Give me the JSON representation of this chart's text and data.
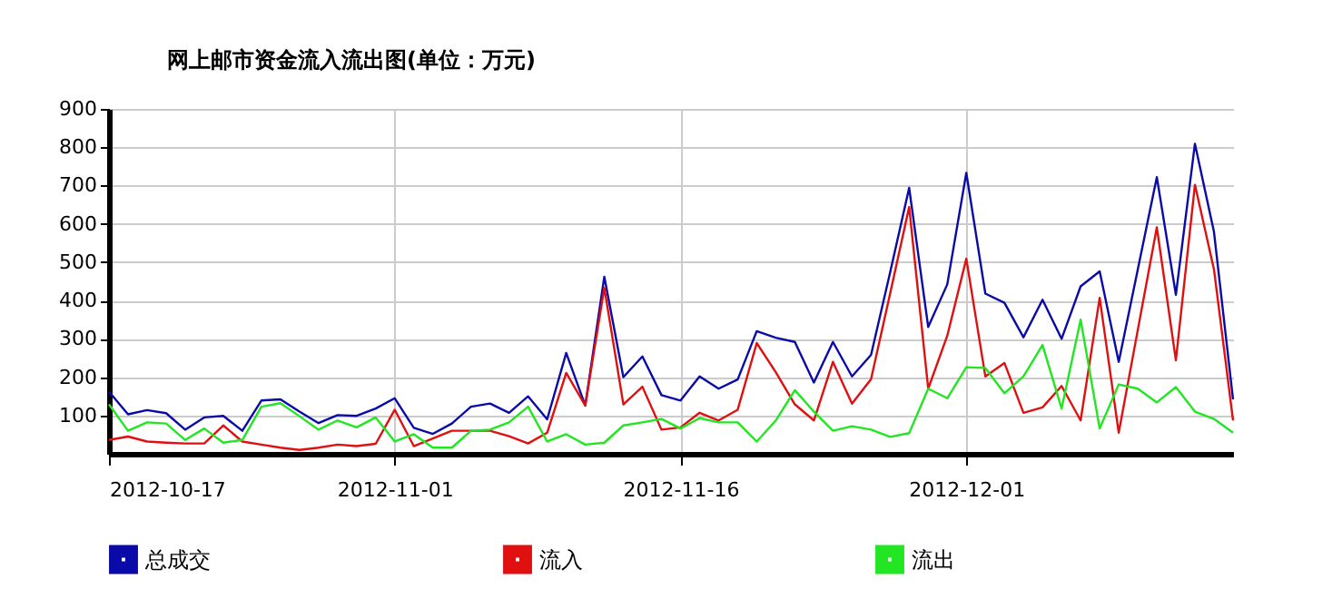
{
  "chart_data": {
    "type": "line",
    "title": "网上邮市资金流入流出图(单位：万元)",
    "x": [
      "2012-10-17",
      "2012-10-18",
      "2012-10-19",
      "2012-10-20",
      "2012-10-21",
      "2012-10-22",
      "2012-10-23",
      "2012-10-24",
      "2012-10-25",
      "2012-10-26",
      "2012-10-27",
      "2012-10-28",
      "2012-10-29",
      "2012-10-30",
      "2012-10-31",
      "2012-11-01",
      "2012-11-02",
      "2012-11-03",
      "2012-11-04",
      "2012-11-05",
      "2012-11-06",
      "2012-11-07",
      "2012-11-08",
      "2012-11-09",
      "2012-11-10",
      "2012-11-11",
      "2012-11-12",
      "2012-11-13",
      "2012-11-14",
      "2012-11-15",
      "2012-11-16",
      "2012-11-17",
      "2012-11-18",
      "2012-11-19",
      "2012-11-20",
      "2012-11-21",
      "2012-11-22",
      "2012-11-23",
      "2012-11-24",
      "2012-11-25",
      "2012-11-26",
      "2012-11-27",
      "2012-11-28",
      "2012-11-29",
      "2012-11-30",
      "2012-12-01",
      "2012-12-02",
      "2012-12-03",
      "2012-12-04",
      "2012-12-05",
      "2012-12-06",
      "2012-12-07",
      "2012-12-08",
      "2012-12-09",
      "2012-12-10",
      "2012-12-11",
      "2012-12-12",
      "2012-12-13",
      "2012-12-14",
      "2012-12-15"
    ],
    "series": [
      {
        "name": "总成交",
        "color": "#0a0aa8",
        "values": [
          162,
          103,
          114,
          106,
          63,
          95,
          99,
          60,
          139,
          142,
          110,
          80,
          101,
          99,
          118,
          145,
          68,
          52,
          79,
          123,
          131,
          107,
          150,
          90,
          263,
          126,
          462,
          200,
          254,
          153,
          139,
          202,
          170,
          194,
          320,
          303,
          292,
          186,
          292,
          202,
          258,
          473,
          694,
          331,
          442,
          733,
          418,
          394,
          304,
          402,
          300,
          437,
          476,
          240,
          481,
          722,
          415,
          809,
          579,
          142
        ]
      },
      {
        "name": "流入",
        "color": "#e01010",
        "values": [
          36,
          45,
          32,
          29,
          27,
          27,
          74,
          32,
          24,
          16,
          10,
          16,
          24,
          20,
          26,
          115,
          20,
          40,
          60,
          60,
          60,
          46,
          27,
          55,
          211,
          126,
          433,
          129,
          175,
          63,
          69,
          107,
          87,
          115,
          289,
          213,
          129,
          87,
          240,
          131,
          195,
          418,
          644,
          170,
          308,
          509,
          202,
          237,
          107,
          121,
          177,
          87,
          407,
          55,
          323,
          591,
          244,
          702,
          481,
          87
        ]
      },
      {
        "name": "流出",
        "color": "#22e622",
        "values": [
          129,
          60,
          82,
          79,
          36,
          66,
          29,
          36,
          123,
          132,
          98,
          63,
          87,
          69,
          95,
          32,
          51,
          16,
          16,
          60,
          63,
          82,
          123,
          32,
          51,
          24,
          29,
          74,
          82,
          91,
          66,
          93,
          82,
          82,
          32,
          87,
          166,
          110,
          60,
          72,
          63,
          44,
          54,
          170,
          145,
          226,
          224,
          158,
          202,
          284,
          118,
          350,
          66,
          181,
          170,
          134,
          174,
          110,
          91,
          55
        ]
      }
    ],
    "xlim": [
      "2012-10-17",
      "2012-12-15"
    ],
    "xticks": [
      "2012-10-17",
      "2012-11-01",
      "2012-11-16",
      "2012-12-01"
    ],
    "ylim": [
      0,
      900
    ],
    "yticks": [
      100,
      200,
      300,
      400,
      500,
      600,
      700,
      800,
      900
    ],
    "grid": true,
    "legend": "bottom",
    "marker": "none",
    "line_style": "solid"
  }
}
